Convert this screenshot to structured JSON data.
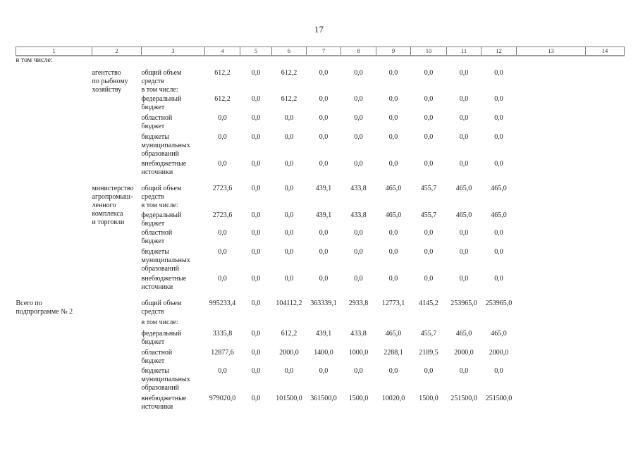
{
  "page": {
    "number": "17"
  },
  "colors": {
    "text": "#1c1c1c",
    "border": "#7d7d7d",
    "background": "#ffffff"
  },
  "table": {
    "column_headers": [
      "1",
      "2",
      "3",
      "4",
      "5",
      "6",
      "7",
      "8",
      "9",
      "10",
      "11",
      "12",
      "13",
      "14"
    ],
    "rows": [
      {
        "cells": [
          {
            "col": 1,
            "text": "в том числе:"
          }
        ]
      },
      {
        "cells": [
          {
            "col": 2,
            "rowspan": 5,
            "text": "агентство\nпо рыбному\nхозяйству"
          },
          {
            "col": 3,
            "text": "общий объем\nсредств\nв том числе:"
          },
          {
            "col": 4,
            "text": "612,2"
          },
          {
            "col": 5,
            "text": "0,0"
          },
          {
            "col": 6,
            "text": "612,2"
          },
          {
            "col": 7,
            "text": "0,0"
          },
          {
            "col": 8,
            "text": "0,0"
          },
          {
            "col": 9,
            "text": "0,0"
          },
          {
            "col": 10,
            "text": "0,0"
          },
          {
            "col": 11,
            "text": "0,0"
          },
          {
            "col": 12,
            "text": "0,0"
          }
        ]
      },
      {
        "cells": [
          {
            "col": 3,
            "text": "федеральный\nбюджет"
          },
          {
            "col": 4,
            "text": "612,2"
          },
          {
            "col": 5,
            "text": "0,0"
          },
          {
            "col": 6,
            "text": "612,2"
          },
          {
            "col": 7,
            "text": "0,0"
          },
          {
            "col": 8,
            "text": "0,0"
          },
          {
            "col": 9,
            "text": "0,0"
          },
          {
            "col": 10,
            "text": "0,0"
          },
          {
            "col": 11,
            "text": "0,0"
          },
          {
            "col": 12,
            "text": "0,0"
          }
        ]
      },
      {
        "cells": [
          {
            "col": 3,
            "text": "областной\nбюджет"
          },
          {
            "col": 4,
            "text": "0,0"
          },
          {
            "col": 5,
            "text": "0,0"
          },
          {
            "col": 6,
            "text": "0,0"
          },
          {
            "col": 7,
            "text": "0,0"
          },
          {
            "col": 8,
            "text": "0,0"
          },
          {
            "col": 9,
            "text": "0,0"
          },
          {
            "col": 10,
            "text": "0,0"
          },
          {
            "col": 11,
            "text": "0,0"
          },
          {
            "col": 12,
            "text": "0,0"
          }
        ]
      },
      {
        "cells": [
          {
            "col": 3,
            "text": "бюджеты\nмуниципальных\nобразований"
          },
          {
            "col": 4,
            "text": "0,0"
          },
          {
            "col": 5,
            "text": "0,0"
          },
          {
            "col": 6,
            "text": "0,0"
          },
          {
            "col": 7,
            "text": "0,0"
          },
          {
            "col": 8,
            "text": "0,0"
          },
          {
            "col": 9,
            "text": "0,0"
          },
          {
            "col": 10,
            "text": "0,0"
          },
          {
            "col": 11,
            "text": "0,0"
          },
          {
            "col": 12,
            "text": "0,0"
          }
        ]
      },
      {
        "cells": [
          {
            "col": 3,
            "text": "внебюджетные\nисточники"
          },
          {
            "col": 4,
            "text": "0,0"
          },
          {
            "col": 5,
            "text": "0,0"
          },
          {
            "col": 6,
            "text": "0,0"
          },
          {
            "col": 7,
            "text": "0,0"
          },
          {
            "col": 8,
            "text": "0,0"
          },
          {
            "col": 9,
            "text": "0,0"
          },
          {
            "col": 10,
            "text": "0,0"
          },
          {
            "col": 11,
            "text": "0,0"
          },
          {
            "col": 12,
            "text": "0,0"
          }
        ]
      },
      {
        "cells": [
          {
            "col": 2,
            "rowspan": 5,
            "text": "министерство\nагропромыш-\nленного\nкомплекса\nи торговли"
          },
          {
            "col": 3,
            "text": "общий объем\nсредств\nв том числе:"
          },
          {
            "col": 4,
            "text": "2723,6"
          },
          {
            "col": 5,
            "text": "0,0"
          },
          {
            "col": 6,
            "text": "0,0"
          },
          {
            "col": 7,
            "text": "439,1"
          },
          {
            "col": 8,
            "text": "433,8"
          },
          {
            "col": 9,
            "text": "465,0"
          },
          {
            "col": 10,
            "text": "455,7"
          },
          {
            "col": 11,
            "text": "465,0"
          },
          {
            "col": 12,
            "text": "465,0"
          }
        ]
      },
      {
        "cells": [
          {
            "col": 3,
            "text": "федеральный\nбюджет"
          },
          {
            "col": 4,
            "text": "2723,6"
          },
          {
            "col": 5,
            "text": "0,0"
          },
          {
            "col": 6,
            "text": "0,0"
          },
          {
            "col": 7,
            "text": "439,1"
          },
          {
            "col": 8,
            "text": "433,8"
          },
          {
            "col": 9,
            "text": "465,0"
          },
          {
            "col": 10,
            "text": "455,7"
          },
          {
            "col": 11,
            "text": "465,0"
          },
          {
            "col": 12,
            "text": "465,0"
          }
        ]
      },
      {
        "cells": [
          {
            "col": 3,
            "text": "областной\nбюджет"
          },
          {
            "col": 4,
            "text": "0,0"
          },
          {
            "col": 5,
            "text": "0,0"
          },
          {
            "col": 6,
            "text": "0,0"
          },
          {
            "col": 7,
            "text": "0,0"
          },
          {
            "col": 8,
            "text": "0,0"
          },
          {
            "col": 9,
            "text": "0,0"
          },
          {
            "col": 10,
            "text": "0,0"
          },
          {
            "col": 11,
            "text": "0,0"
          },
          {
            "col": 12,
            "text": "0,0"
          }
        ]
      },
      {
        "cells": [
          {
            "col": 3,
            "text": "бюджеты\nмуниципальных\nобразований"
          },
          {
            "col": 4,
            "text": "0,0"
          },
          {
            "col": 5,
            "text": "0,0"
          },
          {
            "col": 6,
            "text": "0,0"
          },
          {
            "col": 7,
            "text": "0,0"
          },
          {
            "col": 8,
            "text": "0,0"
          },
          {
            "col": 9,
            "text": "0,0"
          },
          {
            "col": 10,
            "text": "0,0"
          },
          {
            "col": 11,
            "text": "0,0"
          },
          {
            "col": 12,
            "text": "0,0"
          }
        ]
      },
      {
        "cells": [
          {
            "col": 3,
            "text": "внебюджетные\nисточники"
          },
          {
            "col": 4,
            "text": "0,0"
          },
          {
            "col": 5,
            "text": "0,0"
          },
          {
            "col": 6,
            "text": "0,0"
          },
          {
            "col": 7,
            "text": "0,0"
          },
          {
            "col": 8,
            "text": "0,0"
          },
          {
            "col": 9,
            "text": "0,0"
          },
          {
            "col": 10,
            "text": "0,0"
          },
          {
            "col": 11,
            "text": "0,0"
          },
          {
            "col": 12,
            "text": "0,0"
          }
        ]
      },
      {
        "cells": [
          {
            "col": 1,
            "rowspan": 6,
            "text": "Всего по\nподпрограмме № 2"
          },
          {
            "col": 3,
            "text": "общий объем\nсредств"
          },
          {
            "col": 4,
            "text": "995233,4"
          },
          {
            "col": 5,
            "text": "0,0"
          },
          {
            "col": 6,
            "text": "104112,2"
          },
          {
            "col": 7,
            "text": "363339,1"
          },
          {
            "col": 8,
            "text": "2933,8"
          },
          {
            "col": 9,
            "text": "12773,1"
          },
          {
            "col": 10,
            "text": "4145,2"
          },
          {
            "col": 11,
            "text": "253965,0"
          },
          {
            "col": 12,
            "text": "253965,0"
          }
        ]
      },
      {
        "cells": [
          {
            "col": 3,
            "text": "в том числе:"
          }
        ]
      },
      {
        "cells": [
          {
            "col": 3,
            "text": "федеральный\nбюджет"
          },
          {
            "col": 4,
            "text": "3335,8"
          },
          {
            "col": 5,
            "text": "0,0"
          },
          {
            "col": 6,
            "text": "612,2"
          },
          {
            "col": 7,
            "text": "439,1"
          },
          {
            "col": 8,
            "text": "433,8"
          },
          {
            "col": 9,
            "text": "465,0"
          },
          {
            "col": 10,
            "text": "455,7"
          },
          {
            "col": 11,
            "text": "465,0"
          },
          {
            "col": 12,
            "text": "465,0"
          }
        ]
      },
      {
        "cells": [
          {
            "col": 3,
            "text": "областной\nбюджет"
          },
          {
            "col": 4,
            "text": "12877,6"
          },
          {
            "col": 5,
            "text": "0,0"
          },
          {
            "col": 6,
            "text": "2000,0"
          },
          {
            "col": 7,
            "text": "1400,0"
          },
          {
            "col": 8,
            "text": "1000,0"
          },
          {
            "col": 9,
            "text": "2288,1"
          },
          {
            "col": 10,
            "text": "2189,5"
          },
          {
            "col": 11,
            "text": "2000,0"
          },
          {
            "col": 12,
            "text": "2000,0"
          }
        ]
      },
      {
        "cells": [
          {
            "col": 3,
            "text": "бюджеты\nмуниципальных\nобразований"
          },
          {
            "col": 4,
            "text": "0,0"
          },
          {
            "col": 5,
            "text": "0,0"
          },
          {
            "col": 6,
            "text": "0,0"
          },
          {
            "col": 7,
            "text": "0,0"
          },
          {
            "col": 8,
            "text": "0,0"
          },
          {
            "col": 9,
            "text": "0,0"
          },
          {
            "col": 10,
            "text": "0,0"
          },
          {
            "col": 11,
            "text": "0,0"
          },
          {
            "col": 12,
            "text": "0,0"
          }
        ]
      },
      {
        "cells": [
          {
            "col": 3,
            "text": "внебюджетные\nисточники"
          },
          {
            "col": 4,
            "text": "979020,0"
          },
          {
            "col": 5,
            "text": "0,0"
          },
          {
            "col": 6,
            "text": "101500,0"
          },
          {
            "col": 7,
            "text": "361500,0"
          },
          {
            "col": 8,
            "text": "1500,0"
          },
          {
            "col": 9,
            "text": "10020,0"
          },
          {
            "col": 10,
            "text": "1500,0"
          },
          {
            "col": 11,
            "text": "251500,0"
          },
          {
            "col": 12,
            "text": "251500,0"
          }
        ]
      }
    ]
  }
}
